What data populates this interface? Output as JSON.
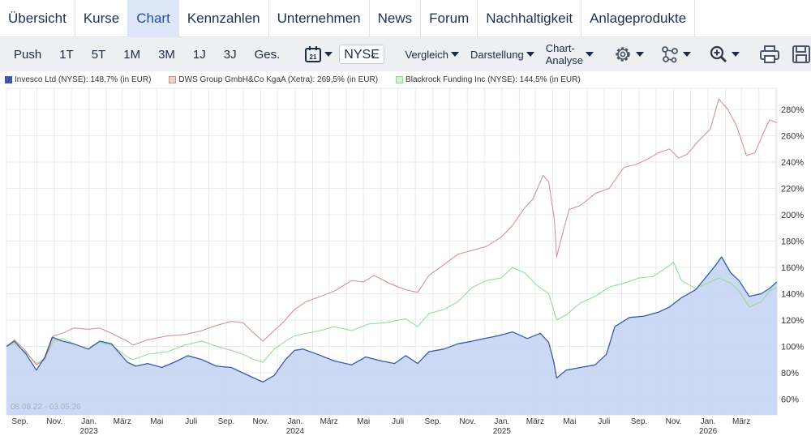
{
  "tabs": [
    {
      "label": "Übersicht",
      "active": false
    },
    {
      "label": "Kurse",
      "active": false
    },
    {
      "label": "Chart",
      "active": true
    },
    {
      "label": "Kennzahlen",
      "active": false
    },
    {
      "label": "Unternehmen",
      "active": false
    },
    {
      "label": "News",
      "active": false
    },
    {
      "label": "Forum",
      "active": false
    },
    {
      "label": "Nachhaltigkeit",
      "active": false
    },
    {
      "label": "Anlageprodukte",
      "active": false
    }
  ],
  "toolbar": {
    "ranges": [
      "Push",
      "1T",
      "5T",
      "1M",
      "3M",
      "1J",
      "3J",
      "Ges."
    ],
    "calendar_day": "21",
    "exchange": "NYSE",
    "menus": [
      "Vergleich",
      "Darstellung",
      "Chart-Analyse"
    ],
    "icons": [
      "gear-icon",
      "network-icon",
      "zoom-in-icon",
      "print-icon",
      "save-icon"
    ]
  },
  "chart_data": {
    "type": "line",
    "period_label": "08.08.22 - 03.05.26",
    "x_range": [
      "2022-08-08",
      "2026-05-03"
    ],
    "ylim": [
      48,
      296
    ],
    "y_ticks": [
      60,
      80,
      100,
      120,
      140,
      160,
      180,
      200,
      220,
      240,
      260,
      280
    ],
    "y_tick_labels": [
      "60%",
      "80%",
      "100%",
      "120%",
      "140%",
      "160%",
      "180%",
      "200%",
      "220%",
      "240%",
      "260%",
      "280%"
    ],
    "x_ticks": [
      {
        "date": "2022-09-01",
        "label": "Sep.",
        "year": ""
      },
      {
        "date": "2022-11-01",
        "label": "Nov.",
        "year": ""
      },
      {
        "date": "2023-01-01",
        "label": "Jan.",
        "year": "2023"
      },
      {
        "date": "2023-03-01",
        "label": "März",
        "year": ""
      },
      {
        "date": "2023-05-01",
        "label": "Mai",
        "year": ""
      },
      {
        "date": "2023-07-01",
        "label": "Juli",
        "year": ""
      },
      {
        "date": "2023-09-01",
        "label": "Sep.",
        "year": ""
      },
      {
        "date": "2023-11-01",
        "label": "Nov.",
        "year": ""
      },
      {
        "date": "2024-01-01",
        "label": "Jan.",
        "year": "2024"
      },
      {
        "date": "2024-03-01",
        "label": "März",
        "year": ""
      },
      {
        "date": "2024-05-01",
        "label": "Mai",
        "year": ""
      },
      {
        "date": "2024-07-01",
        "label": "Juli",
        "year": ""
      },
      {
        "date": "2024-09-01",
        "label": "Sep.",
        "year": ""
      },
      {
        "date": "2024-11-01",
        "label": "Nov.",
        "year": ""
      },
      {
        "date": "2025-01-01",
        "label": "Jan.",
        "year": "2025"
      },
      {
        "date": "2025-03-01",
        "label": "März",
        "year": ""
      },
      {
        "date": "2025-05-01",
        "label": "Mai",
        "year": ""
      },
      {
        "date": "2025-07-01",
        "label": "Juli",
        "year": ""
      },
      {
        "date": "2025-09-01",
        "label": "Sep.",
        "year": ""
      },
      {
        "date": "2025-11-01",
        "label": "Nov.",
        "year": ""
      },
      {
        "date": "2026-01-01",
        "label": "Jan.",
        "year": "2026"
      },
      {
        "date": "2026-03-01",
        "label": "März",
        "year": ""
      }
    ],
    "grid": true,
    "legend_position": "top-left",
    "series": [
      {
        "name": "Invesco Ltd (NYSE): 148,7% (in EUR)",
        "color": "#3a5aa6",
        "fill": "#c6d5f4",
        "area": true,
        "points": [
          [
            "2022-08-08",
            100
          ],
          [
            "2022-08-22",
            104
          ],
          [
            "2022-09-12",
            94
          ],
          [
            "2022-09-30",
            82
          ],
          [
            "2022-10-15",
            92
          ],
          [
            "2022-10-28",
            107
          ],
          [
            "2022-11-15",
            104
          ],
          [
            "2022-12-05",
            102
          ],
          [
            "2022-12-31",
            98
          ],
          [
            "2023-01-20",
            104
          ],
          [
            "2023-02-10",
            102
          ],
          [
            "2023-03-10",
            88
          ],
          [
            "2023-03-25",
            85
          ],
          [
            "2023-04-15",
            87
          ],
          [
            "2023-05-10",
            84
          ],
          [
            "2023-06-01",
            88
          ],
          [
            "2023-06-25",
            93
          ],
          [
            "2023-07-20",
            90
          ],
          [
            "2023-08-15",
            85
          ],
          [
            "2023-09-10",
            84
          ],
          [
            "2023-09-30",
            80
          ],
          [
            "2023-10-20",
            76
          ],
          [
            "2023-11-05",
            73
          ],
          [
            "2023-11-25",
            78
          ],
          [
            "2023-12-15",
            90
          ],
          [
            "2023-12-31",
            97
          ],
          [
            "2024-01-15",
            98
          ],
          [
            "2024-02-10",
            94
          ],
          [
            "2024-03-10",
            89
          ],
          [
            "2024-04-10",
            86
          ],
          [
            "2024-05-05",
            92
          ],
          [
            "2024-06-01",
            89
          ],
          [
            "2024-06-25",
            87
          ],
          [
            "2024-07-15",
            93
          ],
          [
            "2024-08-05",
            87
          ],
          [
            "2024-08-25",
            96
          ],
          [
            "2024-09-20",
            98
          ],
          [
            "2024-10-15",
            102
          ],
          [
            "2024-11-10",
            104
          ],
          [
            "2024-12-01",
            106
          ],
          [
            "2024-12-25",
            108
          ],
          [
            "2025-01-20",
            111
          ],
          [
            "2025-02-15",
            106
          ],
          [
            "2025-03-10",
            110
          ],
          [
            "2025-03-25",
            103
          ],
          [
            "2025-04-03",
            88
          ],
          [
            "2025-04-08",
            76
          ],
          [
            "2025-04-25",
            82
          ],
          [
            "2025-05-20",
            84
          ],
          [
            "2025-06-15",
            86
          ],
          [
            "2025-07-05",
            94
          ],
          [
            "2025-07-20",
            115
          ],
          [
            "2025-08-15",
            122
          ],
          [
            "2025-09-10",
            123
          ],
          [
            "2025-10-05",
            126
          ],
          [
            "2025-10-25",
            130
          ],
          [
            "2025-11-15",
            137
          ],
          [
            "2025-12-10",
            143
          ],
          [
            "2025-12-31",
            154
          ],
          [
            "2026-01-15",
            162
          ],
          [
            "2026-01-25",
            168
          ],
          [
            "2026-02-10",
            156
          ],
          [
            "2026-02-25",
            150
          ],
          [
            "2026-03-15",
            138
          ],
          [
            "2026-04-05",
            140
          ],
          [
            "2026-04-20",
            144
          ],
          [
            "2026-05-03",
            149
          ]
        ]
      },
      {
        "name": "DWS Group GmbH&Co KgaA (Xetra): 269,5% (in EUR)",
        "color": "#d48a8a",
        "area": false,
        "points": [
          [
            "2022-08-08",
            100
          ],
          [
            "2022-08-22",
            105
          ],
          [
            "2022-09-10",
            97
          ],
          [
            "2022-09-30",
            86
          ],
          [
            "2022-10-15",
            90
          ],
          [
            "2022-10-30",
            108
          ],
          [
            "2022-11-15",
            110
          ],
          [
            "2022-12-05",
            114
          ],
          [
            "2022-12-31",
            113
          ],
          [
            "2023-01-20",
            114
          ],
          [
            "2023-02-10",
            110
          ],
          [
            "2023-03-10",
            104
          ],
          [
            "2023-03-20",
            101
          ],
          [
            "2023-04-15",
            105
          ],
          [
            "2023-05-20",
            108
          ],
          [
            "2023-06-20",
            109
          ],
          [
            "2023-07-20",
            112
          ],
          [
            "2023-08-15",
            116
          ],
          [
            "2023-09-10",
            119
          ],
          [
            "2023-10-01",
            118
          ],
          [
            "2023-10-20",
            110
          ],
          [
            "2023-11-05",
            104
          ],
          [
            "2023-11-25",
            112
          ],
          [
            "2023-12-10",
            118
          ],
          [
            "2023-12-31",
            128
          ],
          [
            "2024-01-20",
            134
          ],
          [
            "2024-02-15",
            138
          ],
          [
            "2024-03-10",
            142
          ],
          [
            "2024-04-10",
            150
          ],
          [
            "2024-05-01",
            149
          ],
          [
            "2024-05-20",
            154
          ],
          [
            "2024-06-15",
            148
          ],
          [
            "2024-07-15",
            143
          ],
          [
            "2024-08-05",
            141
          ],
          [
            "2024-08-25",
            154
          ],
          [
            "2024-09-20",
            162
          ],
          [
            "2024-10-15",
            170
          ],
          [
            "2024-11-10",
            173
          ],
          [
            "2024-12-05",
            176
          ],
          [
            "2024-12-31",
            183
          ],
          [
            "2025-01-20",
            192
          ],
          [
            "2025-02-10",
            205
          ],
          [
            "2025-02-25",
            212
          ],
          [
            "2025-03-15",
            230
          ],
          [
            "2025-03-25",
            225
          ],
          [
            "2025-04-04",
            196
          ],
          [
            "2025-04-08",
            168
          ],
          [
            "2025-04-15",
            180
          ],
          [
            "2025-04-30",
            204
          ],
          [
            "2025-05-20",
            207
          ],
          [
            "2025-06-15",
            216
          ],
          [
            "2025-07-10",
            220
          ],
          [
            "2025-08-05",
            236
          ],
          [
            "2025-08-25",
            238
          ],
          [
            "2025-09-15",
            242
          ],
          [
            "2025-10-05",
            247
          ],
          [
            "2025-10-25",
            250
          ],
          [
            "2025-11-10",
            243
          ],
          [
            "2025-11-25",
            246
          ],
          [
            "2025-12-15",
            256
          ],
          [
            "2026-01-05",
            265
          ],
          [
            "2026-01-20",
            288
          ],
          [
            "2026-02-05",
            280
          ],
          [
            "2026-02-20",
            268
          ],
          [
            "2026-03-10",
            245
          ],
          [
            "2026-03-25",
            247
          ],
          [
            "2026-04-10",
            263
          ],
          [
            "2026-04-20",
            272
          ],
          [
            "2026-05-03",
            270
          ]
        ]
      },
      {
        "name": "Blackrock Funding Inc (NYSE): 144,5% (in EUR)",
        "color": "#8ddc8a",
        "area": false,
        "points": [
          [
            "2022-08-08",
            100
          ],
          [
            "2022-08-22",
            102
          ],
          [
            "2022-09-10",
            96
          ],
          [
            "2022-09-30",
            87
          ],
          [
            "2022-10-15",
            91
          ],
          [
            "2022-10-30",
            104
          ],
          [
            "2022-11-15",
            106
          ],
          [
            "2022-12-05",
            102
          ],
          [
            "2022-12-31",
            98
          ],
          [
            "2023-01-20",
            103
          ],
          [
            "2023-02-10",
            101
          ],
          [
            "2023-03-10",
            92
          ],
          [
            "2023-03-20",
            90
          ],
          [
            "2023-04-15",
            94
          ],
          [
            "2023-05-20",
            96
          ],
          [
            "2023-06-20",
            101
          ],
          [
            "2023-07-20",
            104
          ],
          [
            "2023-08-15",
            100
          ],
          [
            "2023-09-10",
            97
          ],
          [
            "2023-10-01",
            94
          ],
          [
            "2023-10-20",
            90
          ],
          [
            "2023-11-05",
            88
          ],
          [
            "2023-11-25",
            98
          ],
          [
            "2023-12-15",
            104
          ],
          [
            "2023-12-31",
            108
          ],
          [
            "2024-01-20",
            110
          ],
          [
            "2024-02-15",
            112
          ],
          [
            "2024-03-10",
            115
          ],
          [
            "2024-04-10",
            112
          ],
          [
            "2024-05-10",
            117
          ],
          [
            "2024-06-10",
            118
          ],
          [
            "2024-07-15",
            121
          ],
          [
            "2024-08-05",
            115
          ],
          [
            "2024-08-25",
            125
          ],
          [
            "2024-09-20",
            128
          ],
          [
            "2024-10-15",
            134
          ],
          [
            "2024-11-10",
            145
          ],
          [
            "2024-12-05",
            150
          ],
          [
            "2024-12-31",
            152
          ],
          [
            "2025-01-20",
            160
          ],
          [
            "2025-02-10",
            156
          ],
          [
            "2025-03-05",
            146
          ],
          [
            "2025-03-25",
            140
          ],
          [
            "2025-04-08",
            120
          ],
          [
            "2025-04-25",
            124
          ],
          [
            "2025-05-20",
            133
          ],
          [
            "2025-06-15",
            138
          ],
          [
            "2025-07-10",
            145
          ],
          [
            "2025-08-05",
            148
          ],
          [
            "2025-09-01",
            152
          ],
          [
            "2025-09-25",
            153
          ],
          [
            "2025-10-20",
            160
          ],
          [
            "2025-11-01",
            164
          ],
          [
            "2025-11-15",
            150
          ],
          [
            "2025-12-10",
            144
          ],
          [
            "2025-12-31",
            148
          ],
          [
            "2026-01-20",
            152
          ],
          [
            "2026-02-10",
            148
          ],
          [
            "2026-02-25",
            142
          ],
          [
            "2026-03-15",
            130
          ],
          [
            "2026-04-05",
            134
          ],
          [
            "2026-04-20",
            142
          ],
          [
            "2026-05-03",
            145
          ]
        ]
      }
    ]
  }
}
